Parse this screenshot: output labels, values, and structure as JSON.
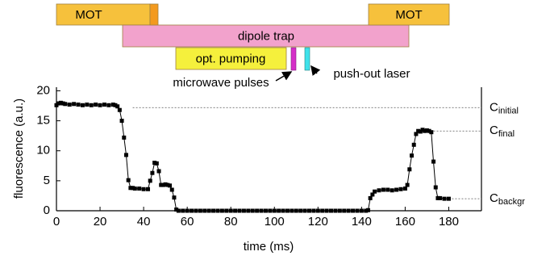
{
  "chart_data": {
    "type": "scatter",
    "xlabel": "time (ms)",
    "ylabel": "fluorescence (a.u.)",
    "xlim": [
      0,
      195
    ],
    "ylim": [
      0,
      20.6
    ],
    "xticks": [
      0,
      20,
      40,
      60,
      80,
      100,
      120,
      140,
      160,
      180
    ],
    "yticks": [
      0,
      5,
      10,
      15,
      20
    ],
    "color": "#000000",
    "x": [
      0,
      1,
      2,
      3,
      4,
      6,
      8,
      10,
      12,
      14,
      16,
      18,
      20,
      22,
      24,
      26,
      27,
      28,
      29,
      30,
      31,
      32,
      33,
      34,
      35,
      36,
      38,
      40,
      42,
      43,
      44,
      45,
      46,
      47,
      48,
      49,
      50,
      51,
      52,
      53,
      54,
      55,
      56,
      58,
      60,
      62,
      64,
      66,
      68,
      70,
      72,
      74,
      76,
      78,
      80,
      82,
      84,
      86,
      88,
      90,
      92,
      94,
      96,
      98,
      100,
      102,
      104,
      106,
      108,
      110,
      112,
      114,
      116,
      118,
      120,
      122,
      124,
      126,
      128,
      130,
      132,
      134,
      136,
      138,
      140,
      142,
      143,
      144,
      145,
      146,
      148,
      150,
      152,
      154,
      156,
      158,
      160,
      161,
      162,
      163,
      164,
      165,
      166,
      167,
      168,
      169,
      170,
      171,
      172,
      173,
      174,
      175,
      176,
      178,
      180
    ],
    "values": [
      17.6,
      17.9,
      18.0,
      17.9,
      17.8,
      17.7,
      17.8,
      17.7,
      17.6,
      17.7,
      17.6,
      17.7,
      17.6,
      17.7,
      17.6,
      17.7,
      17.6,
      17.4,
      16.8,
      15.0,
      12.2,
      9.3,
      5.1,
      3.8,
      3.8,
      3.7,
      3.7,
      3.6,
      3.6,
      5.0,
      6.3,
      8.0,
      7.9,
      6.6,
      4.3,
      4.3,
      4.4,
      4.3,
      4.2,
      3.5,
      2.2,
      0.2,
      0,
      0,
      0,
      0,
      0,
      0,
      0,
      0,
      0,
      0,
      0,
      0,
      0,
      0,
      0,
      0,
      0,
      0,
      0,
      0,
      0,
      0,
      0,
      0,
      0,
      0,
      0,
      0,
      0,
      0,
      0,
      0,
      0,
      0,
      0,
      0,
      0,
      0,
      0,
      0,
      0,
      0,
      0,
      0,
      0.1,
      2.1,
      2.7,
      3.2,
      3.4,
      3.5,
      3.5,
      3.4,
      3.5,
      3.6,
      3.7,
      4.3,
      6.9,
      9.2,
      11.0,
      12.8,
      13.3,
      13.2,
      13.5,
      13.3,
      13.4,
      13.3,
      13.1,
      8.2,
      3.9,
      2.1,
      2.1,
      2.0,
      2.0
    ],
    "reference_lines": [
      {
        "label": "C",
        "subscript": "initial",
        "value": 17.2,
        "from": 35
      },
      {
        "label": "C",
        "subscript": "final",
        "value": 13.3,
        "from": 173
      },
      {
        "label": "C",
        "subscript": "backgr",
        "value": 2.0,
        "from": 180
      }
    ],
    "sequence": [
      "MOT",
      "dipole trap",
      "opt. pumping",
      "MOT"
    ],
    "callouts": [
      "microwave pulses",
      "push-out laser"
    ]
  }
}
